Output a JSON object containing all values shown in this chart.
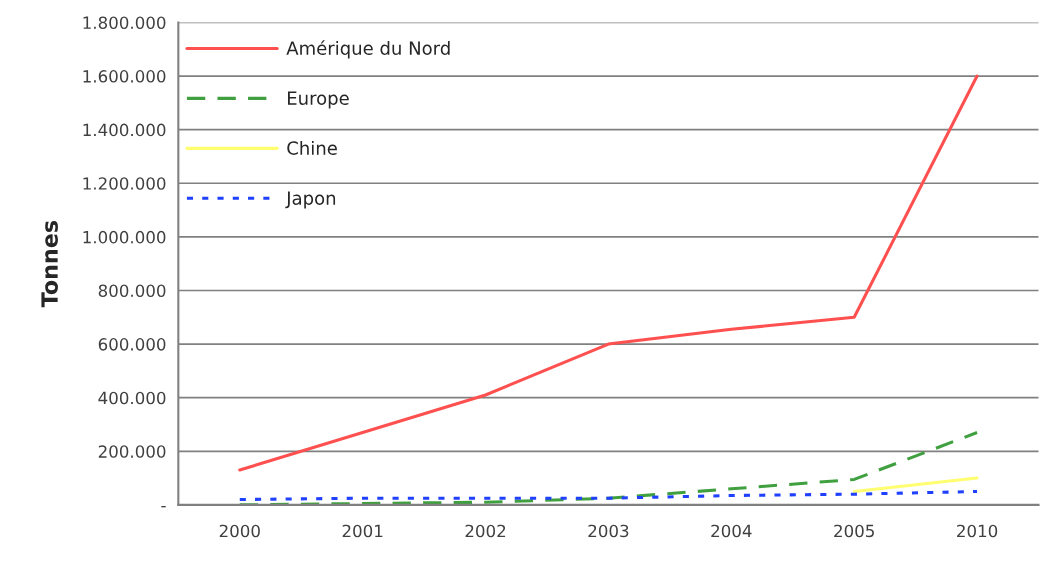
{
  "chart_data": {
    "type": "line",
    "ylabel": "Tonnes",
    "categories": [
      "2000",
      "2001",
      "2002",
      "2003",
      "2004",
      "2005",
      "2010"
    ],
    "series": [
      {
        "name": "Amérique du Nord",
        "color": "#ff5050",
        "line_style": "solid",
        "values": [
          130000,
          270000,
          410000,
          600000,
          655000,
          700000,
          1600000
        ]
      },
      {
        "name": "Europe",
        "color": "#40a040",
        "line_style": "dashed",
        "values": [
          0,
          5000,
          10000,
          25000,
          60000,
          95000,
          270000
        ]
      },
      {
        "name": "Chine",
        "color": "#ffff70",
        "line_style": "solid",
        "values": [
          null,
          null,
          null,
          null,
          null,
          50000,
          100000
        ]
      },
      {
        "name": "Japon",
        "color": "#2040ff",
        "line_style": "dotted",
        "values": [
          20000,
          25000,
          25000,
          25000,
          35000,
          40000,
          50000
        ]
      }
    ],
    "ylim": [
      0,
      1800000
    ],
    "yticks": [
      {
        "value": 0,
        "label": "-"
      },
      {
        "value": 200000,
        "label": "200.000"
      },
      {
        "value": 400000,
        "label": "400.000"
      },
      {
        "value": 600000,
        "label": "600.000"
      },
      {
        "value": 800000,
        "label": "800.000"
      },
      {
        "value": 1000000,
        "label": "1.000.000"
      },
      {
        "value": 1200000,
        "label": "1.200.000"
      },
      {
        "value": 1400000,
        "label": "1.400.000"
      },
      {
        "value": 1600000,
        "label": "1.600.000"
      },
      {
        "value": 1800000,
        "label": "1.800.000"
      }
    ],
    "grid": "y",
    "legend": "top left",
    "marker": "none"
  }
}
